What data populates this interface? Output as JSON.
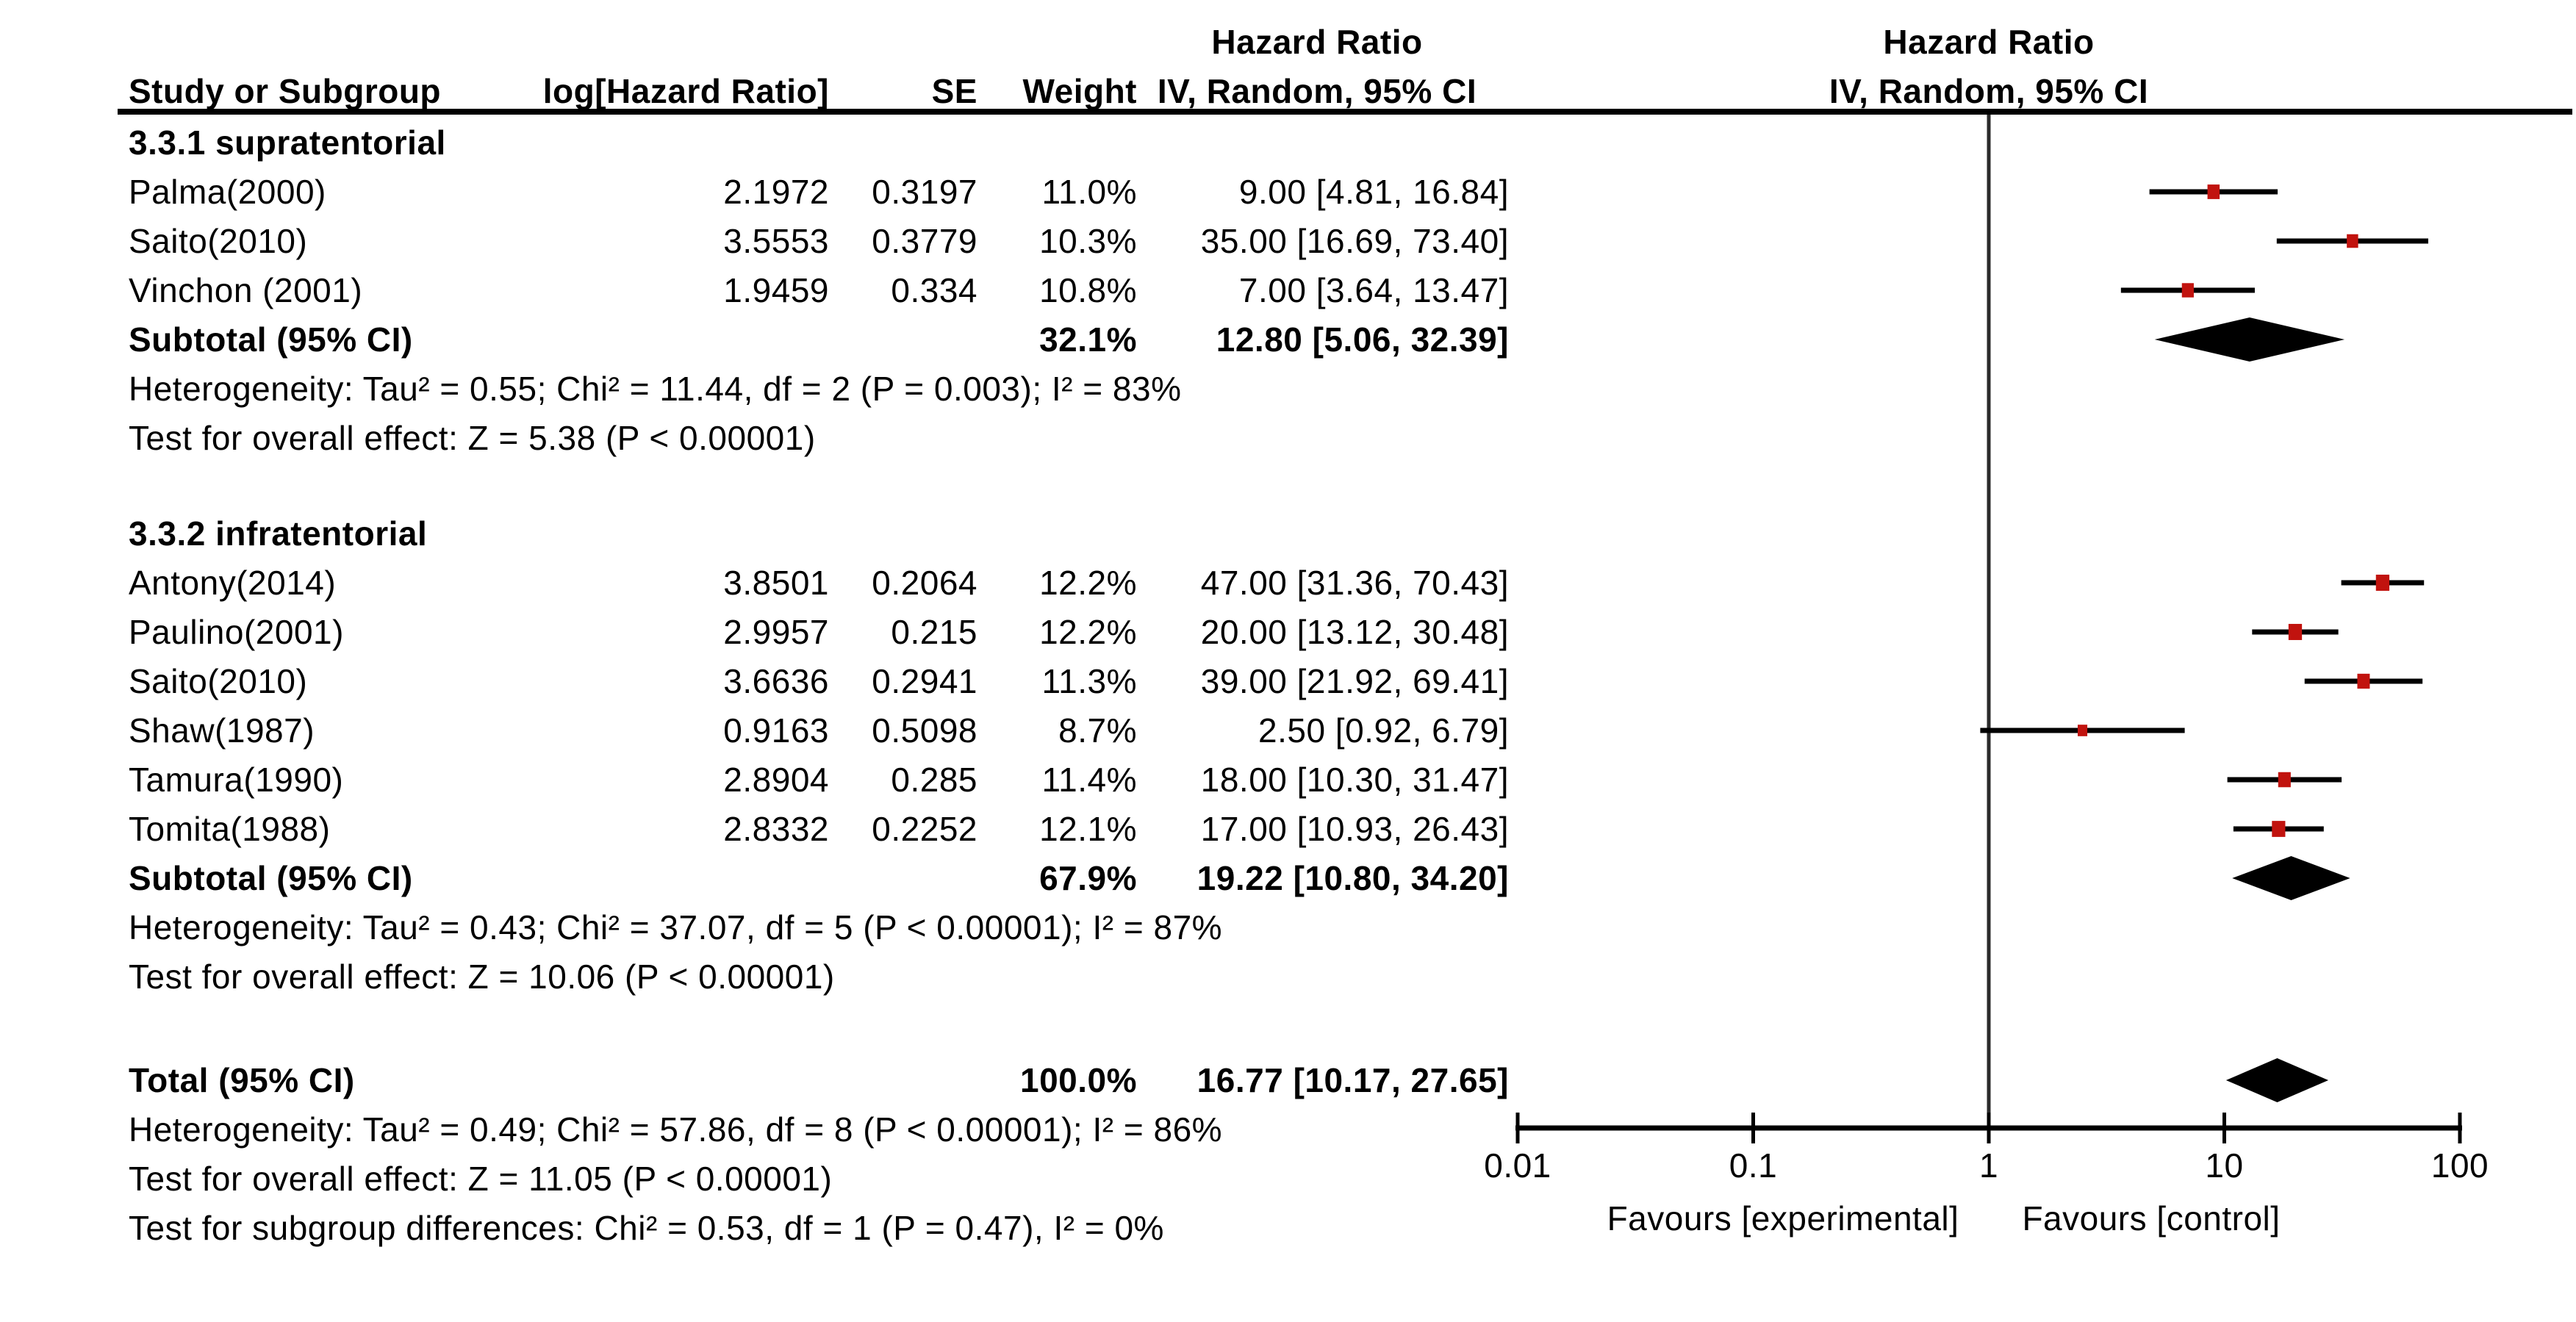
{
  "header": {
    "study_col": "Study or Subgroup",
    "loghr_col": "log[Hazard Ratio]",
    "se_col": "SE",
    "weight_col": "Weight",
    "stat_col_title": "Hazard Ratio",
    "stat_col_subtitle": "IV, Random, 95% CI",
    "plot_col_title": "Hazard Ratio",
    "plot_col_subtitle": "IV, Random, 95% CI"
  },
  "colors": {
    "text": "#000000",
    "line": "#000000",
    "null_line": "#2b2b2b",
    "marker_red": "#c1130e",
    "diamond": "#000000",
    "background": "#ffffff"
  },
  "chart_data": {
    "type": "forest",
    "effect_measure": "Hazard Ratio",
    "model": "IV, Random, 95% CI",
    "x_axis": {
      "scale": "log",
      "min": 0.01,
      "max": 100,
      "null_value": 1,
      "ticks": [
        0.01,
        0.1,
        1,
        10,
        100
      ],
      "tick_labels": [
        "0.01",
        "0.1",
        "1",
        "10",
        "100"
      ],
      "favours_left": "Favours [experimental]",
      "favours_right": "Favours [control]"
    },
    "groups": [
      {
        "title": "3.3.1 supratentorial",
        "studies": [
          {
            "name": "Palma(2000)",
            "log_hr": "2.1972",
            "se": "0.3197",
            "weight": "11.0%",
            "weight_pct": 11.0,
            "ci_text": "9.00 [4.81, 16.84]",
            "hr": 9.0,
            "lo": 4.81,
            "hi": 16.84
          },
          {
            "name": "Saito(2010)",
            "log_hr": "3.5553",
            "se": "0.3779",
            "weight": "10.3%",
            "weight_pct": 10.3,
            "ci_text": "35.00 [16.69, 73.40]",
            "hr": 35.0,
            "lo": 16.69,
            "hi": 73.4
          },
          {
            "name": "Vinchon (2001)",
            "log_hr": "1.9459",
            "se": "0.334",
            "weight": "10.8%",
            "weight_pct": 10.8,
            "ci_text": "7.00 [3.64, 13.47]",
            "hr": 7.0,
            "lo": 3.64,
            "hi": 13.47
          }
        ],
        "subtotal": {
          "label": "Subtotal (95% CI)",
          "weight": "32.1%",
          "ci_text": "12.80 [5.06, 32.39]",
          "hr": 12.8,
          "lo": 5.06,
          "hi": 32.39
        },
        "heterogeneity": "Heterogeneity: Tau² = 0.55; Chi² = 11.44, df = 2 (P = 0.003); I² = 83%",
        "overall_effect": "Test for overall effect: Z = 5.38 (P < 0.00001)"
      },
      {
        "title": "3.3.2 infratentorial",
        "studies": [
          {
            "name": "Antony(2014)",
            "log_hr": "3.8501",
            "se": "0.2064",
            "weight": "12.2%",
            "weight_pct": 12.2,
            "ci_text": "47.00 [31.36, 70.43]",
            "hr": 47.0,
            "lo": 31.36,
            "hi": 70.43
          },
          {
            "name": "Paulino(2001)",
            "log_hr": "2.9957",
            "se": "0.215",
            "weight": "12.2%",
            "weight_pct": 12.2,
            "ci_text": "20.00 [13.12, 30.48]",
            "hr": 20.0,
            "lo": 13.12,
            "hi": 30.48
          },
          {
            "name": "Saito(2010)",
            "log_hr": "3.6636",
            "se": "0.2941",
            "weight": "11.3%",
            "weight_pct": 11.3,
            "ci_text": "39.00 [21.92, 69.41]",
            "hr": 39.0,
            "lo": 21.92,
            "hi": 69.41
          },
          {
            "name": "Shaw(1987)",
            "log_hr": "0.9163",
            "se": "0.5098",
            "weight": "8.7%",
            "weight_pct": 8.7,
            "ci_text": "2.50 [0.92, 6.79]",
            "hr": 2.5,
            "lo": 0.92,
            "hi": 6.79
          },
          {
            "name": "Tamura(1990)",
            "log_hr": "2.8904",
            "se": "0.285",
            "weight": "11.4%",
            "weight_pct": 11.4,
            "ci_text": "18.00 [10.30, 31.47]",
            "hr": 18.0,
            "lo": 10.3,
            "hi": 31.47
          },
          {
            "name": "Tomita(1988)",
            "log_hr": "2.8332",
            "se": "0.2252",
            "weight": "12.1%",
            "weight_pct": 12.1,
            "ci_text": "17.00 [10.93, 26.43]",
            "hr": 17.0,
            "lo": 10.93,
            "hi": 26.43
          }
        ],
        "subtotal": {
          "label": "Subtotal (95% CI)",
          "weight": "67.9%",
          "ci_text": "19.22 [10.80, 34.20]",
          "hr": 19.22,
          "lo": 10.8,
          "hi": 34.2
        },
        "heterogeneity": "Heterogeneity: Tau² = 0.43; Chi² = 37.07, df = 5 (P < 0.00001); I² = 87%",
        "overall_effect": "Test for overall effect: Z = 10.06 (P < 0.00001)"
      }
    ],
    "total": {
      "label": "Total (95% CI)",
      "weight": "100.0%",
      "ci_text": "16.77 [10.17, 27.65]",
      "hr": 16.77,
      "lo": 10.17,
      "hi": 27.65
    },
    "footer_lines": [
      "Heterogeneity: Tau² = 0.49; Chi² = 57.86, df = 8 (P < 0.00001); I² = 86%",
      "Test for overall effect: Z = 11.05 (P < 0.00001)",
      "Test for subgroup differences: Chi² = 0.53, df = 1 (P = 0.47), I² = 0%"
    ]
  }
}
